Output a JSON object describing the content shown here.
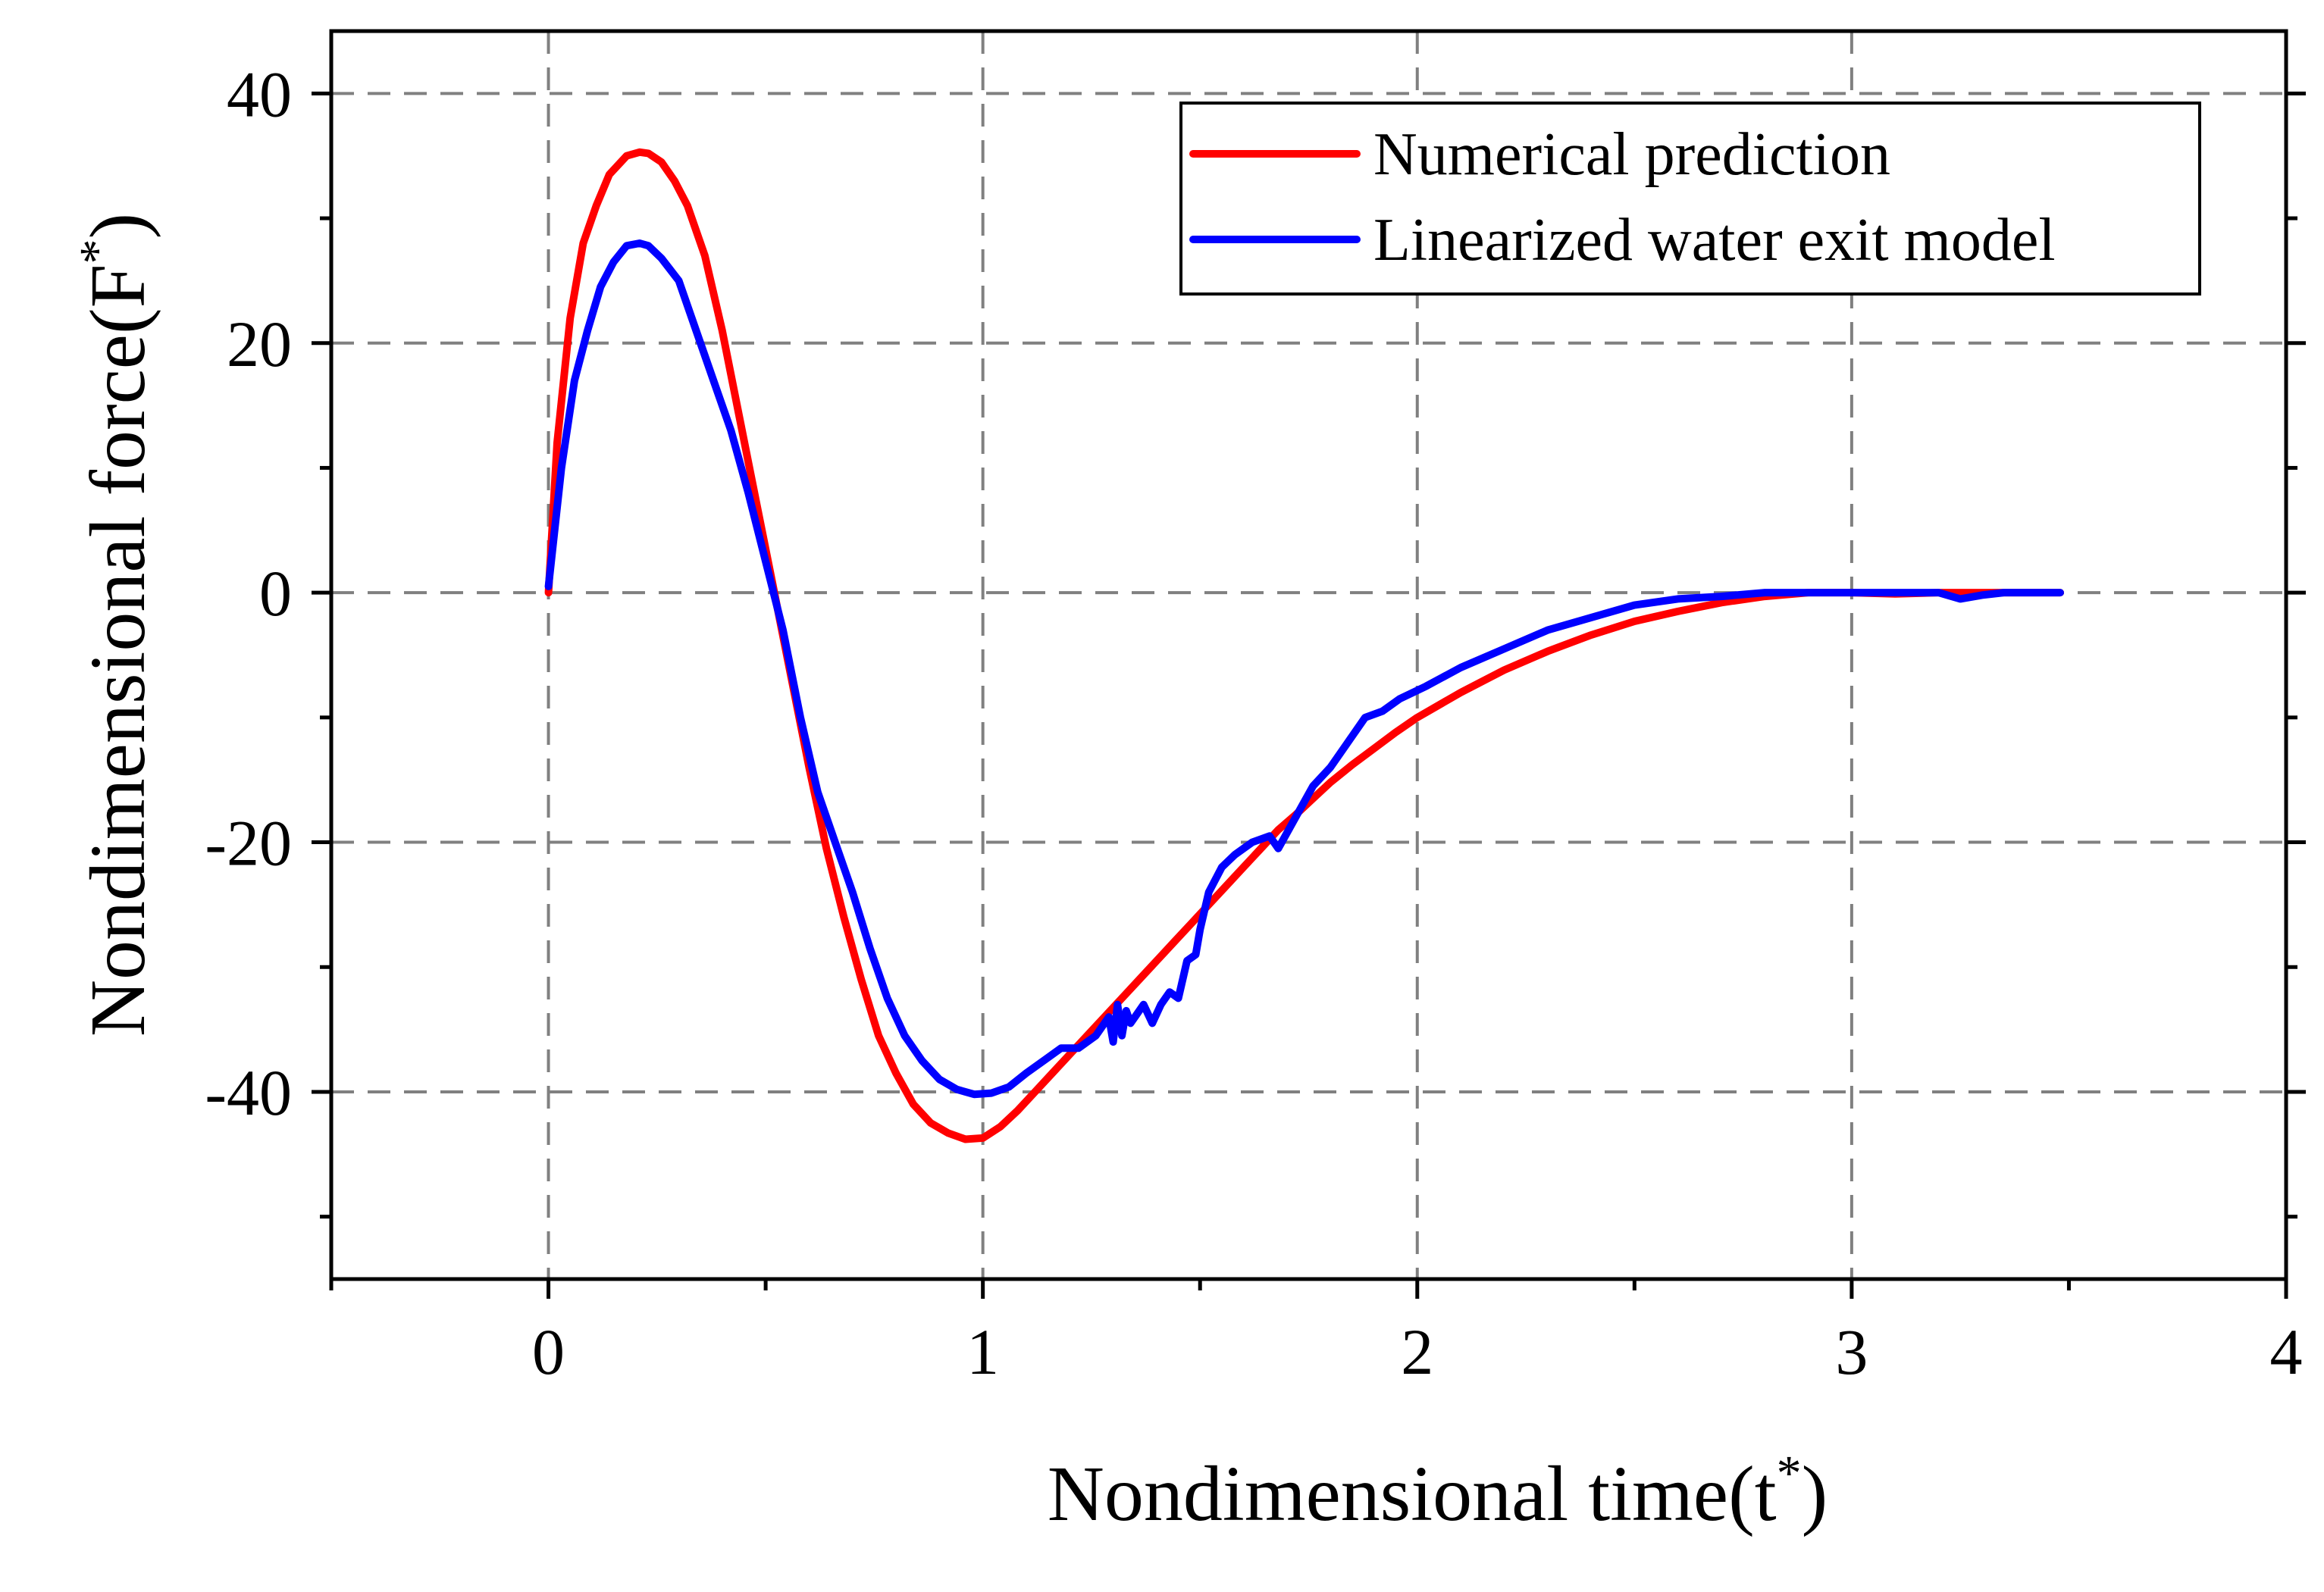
{
  "chart_data": {
    "type": "line",
    "title": "",
    "xlabel": "Nondimensional time(t",
    "xlabel_sup": "*",
    "xlabel_close": ")",
    "ylabel": "Nondimensional force(F",
    "ylabel_sup": "*",
    "ylabel_close": ")",
    "xlim": [
      -0.5,
      4
    ],
    "ylim": [
      -55,
      45
    ],
    "x_ticks": [
      0,
      1,
      2,
      3,
      4
    ],
    "x_tick_labels": [
      "0",
      "1",
      "2",
      "3",
      "4"
    ],
    "x_minor_ticks": [
      -0.5,
      0.5,
      1.5,
      2.5,
      3.5
    ],
    "y_ticks": [
      -40,
      -20,
      0,
      20,
      40
    ],
    "y_tick_labels": [
      "-40",
      "-20",
      "0",
      "20",
      "40"
    ],
    "y_minor_ticks": [
      -50,
      -30,
      -10,
      10,
      30
    ],
    "x_grid": [
      0,
      1,
      2,
      3
    ],
    "y_grid": [
      -40,
      -20,
      0,
      20,
      40
    ],
    "grid": true,
    "legend_position": "top-right",
    "series": [
      {
        "name": "Numerical prediction",
        "color": "#ff0000",
        "x": [
          0,
          0.02,
          0.05,
          0.08,
          0.11,
          0.14,
          0.18,
          0.21,
          0.23,
          0.26,
          0.29,
          0.32,
          0.36,
          0.4,
          0.44,
          0.48,
          0.52,
          0.56,
          0.6,
          0.64,
          0.68,
          0.72,
          0.76,
          0.8,
          0.84,
          0.88,
          0.92,
          0.96,
          1.0,
          1.04,
          1.08,
          1.12,
          1.16,
          1.2,
          1.24,
          1.28,
          1.32,
          1.36,
          1.4,
          1.44,
          1.48,
          1.52,
          1.56,
          1.6,
          1.64,
          1.68,
          1.72,
          1.76,
          1.8,
          1.85,
          1.9,
          1.95,
          2.0,
          2.1,
          2.2,
          2.3,
          2.4,
          2.5,
          2.6,
          2.7,
          2.8,
          2.9,
          3.0,
          3.1,
          3.2,
          3.3,
          3.4,
          3.48
        ],
        "y": [
          0,
          12,
          22,
          28,
          31,
          33.5,
          35,
          35.3,
          35.2,
          34.5,
          33,
          31,
          27,
          21,
          14,
          7,
          0,
          -7,
          -14,
          -20.5,
          -26,
          -31,
          -35.5,
          -38.5,
          -41,
          -42.5,
          -43.3,
          -43.8,
          -43.7,
          -42.8,
          -41.5,
          -40,
          -38.5,
          -37,
          -35.5,
          -34,
          -32.5,
          -31,
          -29.5,
          -28,
          -26.5,
          -25,
          -23.5,
          -22,
          -20.5,
          -19,
          -17.8,
          -16.5,
          -15.2,
          -13.8,
          -12.5,
          -11.2,
          -10,
          -8,
          -6.2,
          -4.7,
          -3.4,
          -2.3,
          -1.5,
          -0.8,
          -0.3,
          0,
          0,
          -0.1,
          0,
          0,
          0,
          0
        ]
      },
      {
        "name": "Linearized water exit model",
        "color": "#0000ff",
        "x": [
          0,
          0.03,
          0.06,
          0.09,
          0.12,
          0.15,
          0.18,
          0.21,
          0.23,
          0.26,
          0.3,
          0.34,
          0.38,
          0.42,
          0.46,
          0.5,
          0.54,
          0.58,
          0.62,
          0.66,
          0.7,
          0.74,
          0.78,
          0.82,
          0.86,
          0.9,
          0.94,
          0.98,
          1.02,
          1.06,
          1.1,
          1.14,
          1.18,
          1.22,
          1.26,
          1.29,
          1.3,
          1.31,
          1.32,
          1.33,
          1.34,
          1.35,
          1.37,
          1.39,
          1.41,
          1.43,
          1.45,
          1.47,
          1.49,
          1.5,
          1.52,
          1.55,
          1.58,
          1.62,
          1.66,
          1.68,
          1.72,
          1.76,
          1.8,
          1.84,
          1.88,
          1.92,
          1.96,
          2.02,
          2.1,
          2.2,
          2.3,
          2.4,
          2.5,
          2.6,
          2.7,
          2.8,
          2.9,
          3.0,
          3.1,
          3.2,
          3.25,
          3.3,
          3.35,
          3.4,
          3.45,
          3.48
        ],
        "y": [
          0.5,
          10,
          17,
          21,
          24.5,
          26.5,
          27.8,
          28,
          27.8,
          26.8,
          25,
          21,
          17,
          13,
          8,
          2.5,
          -3,
          -10,
          -16,
          -20,
          -24,
          -28.5,
          -32.5,
          -35.5,
          -37.5,
          -39,
          -39.8,
          -40.2,
          -40.1,
          -39.6,
          -38.5,
          -37.5,
          -36.5,
          -36.5,
          -35.5,
          -34,
          -36,
          -33,
          -35.5,
          -33.5,
          -34.5,
          -34,
          -33,
          -34.5,
          -33,
          -32,
          -32.5,
          -29.5,
          -29,
          -27,
          -24,
          -22,
          -21,
          -20,
          -19.5,
          -20.5,
          -18,
          -15.5,
          -14,
          -12,
          -10,
          -9.5,
          -8.5,
          -7.5,
          -6,
          -4.5,
          -3,
          -2,
          -1,
          -0.5,
          -0.3,
          0,
          0,
          0,
          0,
          0,
          -0.5,
          -0.2,
          0,
          0,
          0,
          0
        ]
      }
    ]
  }
}
